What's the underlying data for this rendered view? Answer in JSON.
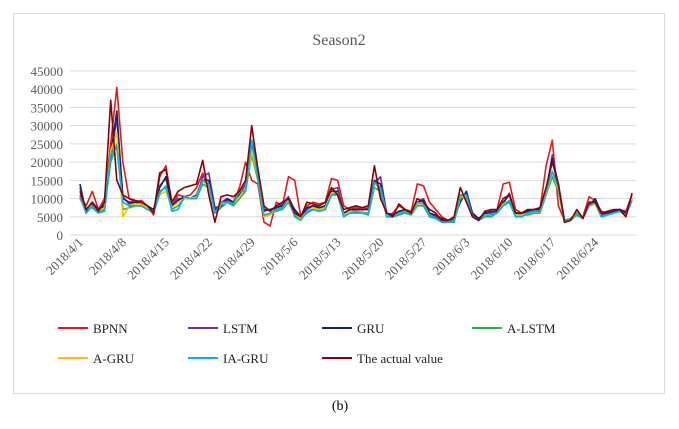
{
  "chart_data": {
    "type": "line",
    "title": "Season2",
    "caption": "(b)",
    "categories": [
      "2018/4/1",
      null,
      null,
      null,
      null,
      null,
      null,
      "2018/4/8",
      null,
      null,
      null,
      null,
      null,
      null,
      "2018/4/15",
      null,
      null,
      null,
      null,
      null,
      null,
      "2018/4/22",
      null,
      null,
      null,
      null,
      null,
      null,
      "2018/4/29",
      null,
      null,
      null,
      null,
      null,
      null,
      "2018/5/6",
      null,
      null,
      null,
      null,
      null,
      null,
      "2018/5/13",
      null,
      null,
      null,
      null,
      null,
      null,
      "2018/5/20",
      null,
      null,
      null,
      null,
      null,
      null,
      "2018/5/27",
      null,
      null,
      null,
      null,
      null,
      null,
      "2018/6/3",
      null,
      null,
      null,
      null,
      null,
      null,
      "2018/6/10",
      null,
      null,
      null,
      null,
      null,
      null,
      "2018/6/17",
      null,
      null,
      null,
      null,
      null,
      null,
      "2018/6/24",
      null,
      null,
      null,
      null,
      null,
      null
    ],
    "ylim": [
      0,
      45000
    ],
    "yticks": [
      0,
      5000,
      10000,
      15000,
      20000,
      25000,
      30000,
      35000,
      40000,
      45000
    ],
    "grid": true,
    "series": [
      {
        "name": "BPNN",
        "color": "#e3191c",
        "values": [
          11000,
          8000,
          12000,
          7000,
          10000,
          25000,
          40500,
          20000,
          10000,
          9000,
          9500,
          8000,
          5500,
          16000,
          19000,
          8000,
          11000,
          10500,
          11000,
          13000,
          17000,
          12000,
          6000,
          9000,
          10000,
          9000,
          13000,
          20000,
          15000,
          14000,
          3500,
          2500,
          9000,
          8000,
          16000,
          15000,
          5000,
          8000,
          9000,
          8500,
          9000,
          15500,
          15000,
          8000,
          7000,
          7500,
          7000,
          7500,
          15000,
          12000,
          5500,
          6000,
          8000,
          7000,
          6500,
          14000,
          13500,
          9000,
          7000,
          5000,
          4000,
          4500,
          11000,
          10000,
          6000,
          4500,
          6000,
          6000,
          7000,
          14000,
          14500,
          7000,
          6000,
          6500,
          7000,
          7000,
          19000,
          26000,
          8000,
          4000,
          4500,
          6000,
          5000,
          10500,
          9500,
          6500,
          6000,
          6500,
          7000,
          6500,
          11000
        ]
      },
      {
        "name": "LSTM",
        "color": "#7030a0",
        "values": [
          13000,
          6500,
          8500,
          6500,
          8000,
          21000,
          32000,
          10500,
          8500,
          9000,
          8500,
          7500,
          6500,
          13500,
          15500,
          8000,
          10000,
          10000,
          10000,
          10500,
          16000,
          17000,
          7500,
          8000,
          9500,
          9000,
          11000,
          14000,
          25000,
          17000,
          6500,
          7000,
          7500,
          8500,
          10500,
          6500,
          4500,
          7000,
          8000,
          7000,
          8000,
          12500,
          13000,
          6000,
          6500,
          7000,
          7000,
          7000,
          14000,
          16000,
          6000,
          5500,
          6500,
          6500,
          6000,
          9000,
          10000,
          6000,
          5000,
          4000,
          4000,
          4500,
          10000,
          11500,
          5500,
          4500,
          6000,
          6000,
          6500,
          8500,
          11500,
          6000,
          5500,
          6500,
          7000,
          7000,
          12000,
          22000,
          13000,
          4000,
          4500,
          6000,
          5000,
          8500,
          9500,
          5500,
          6000,
          6500,
          7000,
          6000,
          10000
        ]
      },
      {
        "name": "GRU",
        "color": "#1a2366",
        "values": [
          14000,
          6000,
          9000,
          7000,
          8000,
          22000,
          34000,
          10000,
          9000,
          9000,
          8500,
          8000,
          7000,
          13000,
          16000,
          8000,
          9500,
          10500,
          10000,
          11000,
          15000,
          15000,
          7000,
          8000,
          10000,
          9000,
          11000,
          13000,
          26000,
          18000,
          7000,
          7000,
          7500,
          8000,
          10000,
          7000,
          5000,
          7500,
          8000,
          7500,
          8000,
          12000,
          12000,
          6000,
          7000,
          7000,
          7000,
          7000,
          15000,
          14000,
          6000,
          5500,
          6500,
          7000,
          6000,
          9000,
          9500,
          6000,
          5500,
          4500,
          4000,
          4500,
          9000,
          12000,
          6000,
          4500,
          6000,
          6500,
          6500,
          9000,
          11000,
          6000,
          6000,
          6500,
          7000,
          7000,
          12000,
          21000,
          14000,
          4000,
          4500,
          6000,
          5000,
          8000,
          10000,
          6000,
          6000,
          6500,
          7000,
          6000,
          10000
        ]
      },
      {
        "name": "A-LSTM",
        "color": "#22b14c",
        "values": [
          10000,
          7000,
          7500,
          6000,
          7000,
          20000,
          25000,
          7000,
          7500,
          8000,
          8000,
          7000,
          6500,
          12000,
          13000,
          7000,
          8000,
          10000,
          10000,
          10000,
          14000,
          13000,
          6000,
          7500,
          9000,
          8000,
          10000,
          12000,
          22000,
          15000,
          5000,
          6000,
          6500,
          7000,
          9000,
          5500,
          4500,
          6000,
          7000,
          6500,
          7000,
          11000,
          11000,
          5000,
          6000,
          6000,
          6000,
          5500,
          13000,
          12000,
          5000,
          5000,
          5500,
          6000,
          5500,
          8000,
          8000,
          5000,
          4500,
          3500,
          3500,
          3500,
          10000,
          10500,
          5000,
          4000,
          5000,
          5000,
          6000,
          8000,
          9000,
          5000,
          5500,
          5500,
          6000,
          6000,
          11000,
          16000,
          12000,
          3500,
          4000,
          5500,
          4500,
          8000,
          8500,
          5000,
          5500,
          6000,
          6500,
          5500,
          9500
        ]
      },
      {
        "name": "A-GRU",
        "color": "#f5c400",
        "values": [
          9500,
          7500,
          8000,
          6500,
          7500,
          23000,
          28000,
          5000,
          8000,
          8500,
          8500,
          7500,
          6000,
          11000,
          12000,
          7500,
          9000,
          10000,
          10000,
          10500,
          15000,
          13000,
          6000,
          8500,
          9000,
          8500,
          10500,
          13000,
          23000,
          16000,
          5000,
          5500,
          7000,
          7500,
          9500,
          6000,
          4500,
          6500,
          7500,
          7000,
          7500,
          11500,
          11500,
          5500,
          6500,
          6500,
          6500,
          6000,
          14000,
          13000,
          5500,
          5000,
          6000,
          6500,
          5500,
          8500,
          8500,
          5500,
          4500,
          3500,
          3500,
          4000,
          10500,
          10500,
          5000,
          4000,
          5500,
          5500,
          6000,
          8500,
          9500,
          5500,
          5500,
          6000,
          6500,
          6500,
          11500,
          17000,
          12500,
          3500,
          4000,
          6000,
          5000,
          8000,
          8500,
          5000,
          5500,
          6000,
          6500,
          5500,
          10000
        ]
      },
      {
        "name": "IA-GRU",
        "color": "#00b0f0",
        "values": [
          10500,
          6000,
          8000,
          6000,
          6500,
          22000,
          24000,
          9000,
          8000,
          8000,
          8000,
          7000,
          6000,
          11500,
          13500,
          6500,
          7000,
          10500,
          10000,
          10000,
          15000,
          14000,
          6000,
          9000,
          9000,
          8500,
          12000,
          12000,
          26000,
          16000,
          5500,
          6000,
          7000,
          7500,
          10000,
          5000,
          4000,
          6500,
          7000,
          6500,
          7000,
          11000,
          11500,
          5000,
          6000,
          6500,
          6000,
          6000,
          14500,
          13000,
          5000,
          5000,
          6000,
          6500,
          5500,
          9000,
          8500,
          5500,
          4500,
          3500,
          3500,
          4000,
          11000,
          11000,
          5000,
          4000,
          5500,
          5500,
          6000,
          8000,
          9500,
          5000,
          5000,
          6000,
          6500,
          6500,
          12000,
          17500,
          13000,
          4000,
          4500,
          6000,
          5000,
          8000,
          9000,
          5000,
          5500,
          6000,
          6500,
          5500,
          9500
        ]
      },
      {
        "name": "The actual value",
        "color": "#8b0000",
        "values": [
          12000,
          7000,
          9000,
          6500,
          9000,
          37000,
          15000,
          11000,
          10000,
          9500,
          9000,
          8000,
          6000,
          17000,
          18000,
          9000,
          12000,
          13000,
          13500,
          14000,
          20500,
          11000,
          3500,
          10500,
          11000,
          10500,
          12000,
          15000,
          30000,
          18000,
          8000,
          6500,
          8000,
          9000,
          10000,
          6000,
          5000,
          9000,
          8500,
          8000,
          9000,
          13000,
          11000,
          7000,
          7500,
          8000,
          7500,
          8000,
          19000,
          10000,
          6000,
          5000,
          8500,
          7000,
          6000,
          10000,
          9000,
          7000,
          6000,
          4000,
          4000,
          5000,
          13000,
          9000,
          5000,
          4000,
          6500,
          7000,
          7000,
          10000,
          11000,
          6000,
          6000,
          7000,
          7000,
          7500,
          13000,
          20000,
          14000,
          3500,
          4000,
          7000,
          4500,
          9000,
          9000,
          6000,
          6500,
          7000,
          7000,
          5000,
          11500
        ]
      }
    ]
  }
}
